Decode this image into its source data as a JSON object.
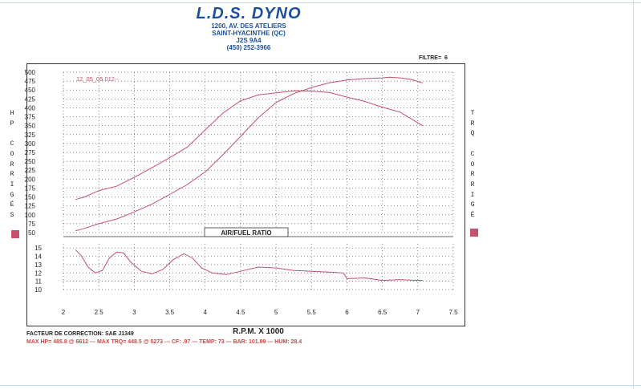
{
  "header": {
    "brand": "L.D.S. DYNO",
    "address_line1": "1200, AV. DES ATELIERS",
    "address_line2": "SAINT-HYACINTHE (QC)",
    "postal_code": "J2S 9A4",
    "phone": "(450) 252-3966"
  },
  "filter": {
    "label": "FILTRE=",
    "value": "6"
  },
  "left_axis_letters": [
    "H",
    "P",
    "",
    "C",
    "O",
    "R",
    "R",
    "I",
    "G",
    "É",
    "S"
  ],
  "right_axis_letters": [
    "T",
    "R",
    "Q",
    "",
    "C",
    "O",
    "R",
    "R",
    "I",
    "G",
    "É"
  ],
  "footer": {
    "correction": "FACTEUR DE CORRECTION: SAE J1349",
    "max_line": "MAX HP= 485.8 @ 6612 --- MAX TRQ= 448.5 @ 5273 --- CF: .97 --- TEMP: 73 --- BAR: 101.99 --- HUM: 28.4"
  },
  "colors": {
    "curve": "#c0506a",
    "swatch": "#c8526e",
    "header": "#1b4f9c",
    "grid": "#555555"
  },
  "chart_data": [
    {
      "type": "line",
      "run_label": "12_05_05.012--",
      "x_label": "R.P.M. X 1000",
      "x_ticks": [
        "2",
        "2.5",
        "3",
        "3.5",
        "4",
        "4.5",
        "5",
        "5.5",
        "6",
        "6.5",
        "7",
        "7.5"
      ],
      "xlim": [
        2,
        7.5
      ],
      "y_ticks": [
        "50",
        "75",
        "100",
        "125",
        "150",
        "175",
        "200",
        "225",
        "250",
        "275",
        "300",
        "325",
        "350",
        "375",
        "400",
        "425",
        "450",
        "475",
        "500"
      ],
      "ylim": [
        50,
        500
      ],
      "grid": true,
      "series": [
        {
          "points": [
            [
              2.17,
              55
            ],
            [
              2.3,
              62
            ],
            [
              2.5,
              75
            ],
            [
              2.75,
              88
            ],
            [
              3.0,
              108
            ],
            [
              3.25,
              130
            ],
            [
              3.5,
              157
            ],
            [
              3.75,
              185
            ],
            [
              4.0,
              220
            ],
            [
              4.25,
              268
            ],
            [
              4.5,
              320
            ],
            [
              4.75,
              372
            ],
            [
              5.0,
              415
            ],
            [
              5.25,
              440
            ],
            [
              5.5,
              457
            ],
            [
              5.75,
              470
            ],
            [
              6.0,
              478
            ],
            [
              6.25,
              482
            ],
            [
              6.5,
              484
            ],
            [
              6.6,
              486
            ],
            [
              6.75,
              484
            ],
            [
              6.9,
              480
            ],
            [
              7.0,
              474
            ],
            [
              7.07,
              470
            ]
          ]
        },
        {
          "points": [
            [
              2.17,
              143
            ],
            [
              2.3,
              150
            ],
            [
              2.5,
              168
            ],
            [
              2.75,
              180
            ],
            [
              3.0,
              205
            ],
            [
              3.25,
              232
            ],
            [
              3.5,
              260
            ],
            [
              3.75,
              290
            ],
            [
              4.0,
              338
            ],
            [
              4.25,
              385
            ],
            [
              4.5,
              420
            ],
            [
              4.75,
              436
            ],
            [
              5.0,
              442
            ],
            [
              5.27,
              448
            ],
            [
              5.5,
              447
            ],
            [
              5.75,
              443
            ],
            [
              6.0,
              430
            ],
            [
              6.25,
              418
            ],
            [
              6.5,
              402
            ],
            [
              6.75,
              388
            ],
            [
              7.0,
              358
            ],
            [
              7.07,
              350
            ]
          ]
        }
      ]
    },
    {
      "type": "line",
      "title": "AIR/FUEL RATIO",
      "xlim": [
        2,
        7.5
      ],
      "y_ticks": [
        "10",
        "11",
        "12",
        "13",
        "14",
        "15"
      ],
      "ylim": [
        10,
        15.5
      ],
      "grid": true,
      "series": [
        {
          "points": [
            [
              2.17,
              14.8
            ],
            [
              2.25,
              14.1
            ],
            [
              2.35,
              12.7
            ],
            [
              2.45,
              12.0
            ],
            [
              2.55,
              12.3
            ],
            [
              2.65,
              13.8
            ],
            [
              2.75,
              14.5
            ],
            [
              2.85,
              14.4
            ],
            [
              2.95,
              13.3
            ],
            [
              3.1,
              12.2
            ],
            [
              3.25,
              11.9
            ],
            [
              3.4,
              12.4
            ],
            [
              3.55,
              13.6
            ],
            [
              3.7,
              14.3
            ],
            [
              3.82,
              13.8
            ],
            [
              3.95,
              12.6
            ],
            [
              4.1,
              12.0
            ],
            [
              4.3,
              11.8
            ],
            [
              4.5,
              12.2
            ],
            [
              4.75,
              12.7
            ],
            [
              5.0,
              12.6
            ],
            [
              5.25,
              12.3
            ],
            [
              5.5,
              12.2
            ],
            [
              5.75,
              12.1
            ],
            [
              5.95,
              12.0
            ],
            [
              6.0,
              11.3
            ],
            [
              6.25,
              11.4
            ],
            [
              6.5,
              11.1
            ],
            [
              6.75,
              11.2
            ],
            [
              7.0,
              11.1
            ],
            [
              7.07,
              11.1
            ]
          ]
        }
      ]
    }
  ]
}
